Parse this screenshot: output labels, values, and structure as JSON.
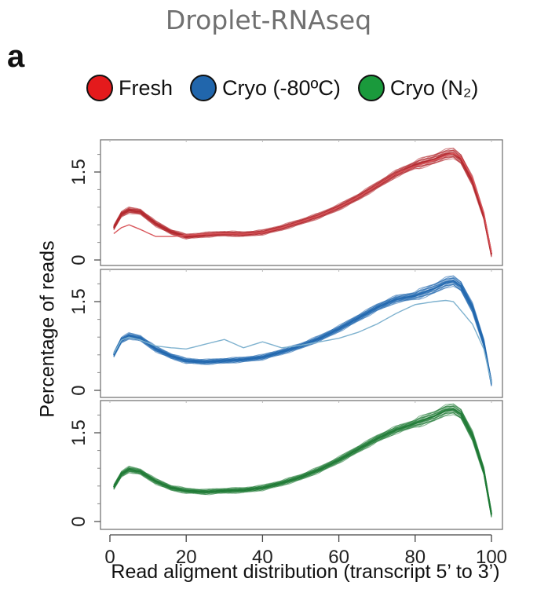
{
  "header": {
    "title": "Droplet-RNAseq",
    "panel_letter": "a"
  },
  "legend": [
    {
      "label": "Fresh",
      "color": "#e41a1c"
    },
    {
      "label": "Cryo (-80ºC)",
      "color": "#2166ac"
    },
    {
      "label": "Cryo (N₂)",
      "color": "#1a9a3c"
    }
  ],
  "chart_data": {
    "type": "line",
    "xlabel": "Read aligment distribution (transcript 5’ to 3’)",
    "ylabel": "Percentage of reads",
    "xlim": [
      0,
      100
    ],
    "xticks": [
      0,
      20,
      40,
      60,
      80,
      100
    ],
    "ylim": [
      0,
      2.0
    ],
    "yticks": [
      0,
      1.5
    ],
    "grid": false,
    "legend_position": "top",
    "panels": [
      {
        "name": "Fresh",
        "color": "#b3282d",
        "x": [
          1,
          3,
          5,
          8,
          12,
          16,
          20,
          25,
          30,
          35,
          40,
          45,
          50,
          55,
          60,
          65,
          70,
          75,
          80,
          85,
          88,
          90,
          92,
          95,
          98,
          100
        ],
        "mean": [
          0.55,
          0.78,
          0.85,
          0.82,
          0.62,
          0.48,
          0.4,
          0.43,
          0.45,
          0.44,
          0.47,
          0.55,
          0.65,
          0.76,
          0.9,
          1.07,
          1.27,
          1.47,
          1.62,
          1.72,
          1.8,
          1.82,
          1.72,
          1.35,
          0.75,
          0.1
        ],
        "outlier": [
          0.45,
          0.55,
          0.6,
          0.52,
          0.4,
          0.4,
          0.42,
          0.44,
          0.45,
          0.44,
          0.47,
          0.55,
          0.65,
          0.76,
          0.9,
          1.07,
          1.27,
          1.47,
          1.6,
          1.7,
          1.78,
          1.82,
          1.75,
          1.4,
          0.8,
          0.12
        ]
      },
      {
        "name": "Cryo (-80ºC)",
        "color": "#2167ae",
        "x": [
          1,
          3,
          5,
          8,
          12,
          16,
          20,
          25,
          30,
          35,
          40,
          45,
          50,
          55,
          60,
          65,
          70,
          75,
          80,
          85,
          88,
          90,
          92,
          95,
          98,
          100
        ],
        "mean": [
          0.6,
          0.85,
          0.92,
          0.88,
          0.7,
          0.58,
          0.5,
          0.48,
          0.5,
          0.52,
          0.56,
          0.65,
          0.75,
          0.88,
          1.04,
          1.22,
          1.4,
          1.54,
          1.6,
          1.72,
          1.82,
          1.85,
          1.76,
          1.4,
          0.8,
          0.12
        ],
        "outlier": [
          0.62,
          0.85,
          0.9,
          0.85,
          0.75,
          0.72,
          0.7,
          0.78,
          0.86,
          0.72,
          0.82,
          0.72,
          0.76,
          0.82,
          0.88,
          0.98,
          1.12,
          1.3,
          1.45,
          1.5,
          1.52,
          1.5,
          1.35,
          1.12,
          0.7,
          0.12
        ]
      },
      {
        "name": "Cryo (N₂)",
        "color": "#1f7a35",
        "x": [
          1,
          3,
          5,
          8,
          12,
          16,
          20,
          25,
          30,
          35,
          40,
          45,
          50,
          55,
          60,
          65,
          70,
          75,
          80,
          85,
          88,
          90,
          92,
          95,
          98,
          100
        ],
        "mean": [
          0.58,
          0.8,
          0.88,
          0.84,
          0.68,
          0.57,
          0.52,
          0.5,
          0.52,
          0.53,
          0.57,
          0.65,
          0.75,
          0.88,
          1.04,
          1.22,
          1.4,
          1.55,
          1.66,
          1.78,
          1.88,
          1.9,
          1.82,
          1.45,
          0.85,
          0.12
        ]
      }
    ]
  }
}
